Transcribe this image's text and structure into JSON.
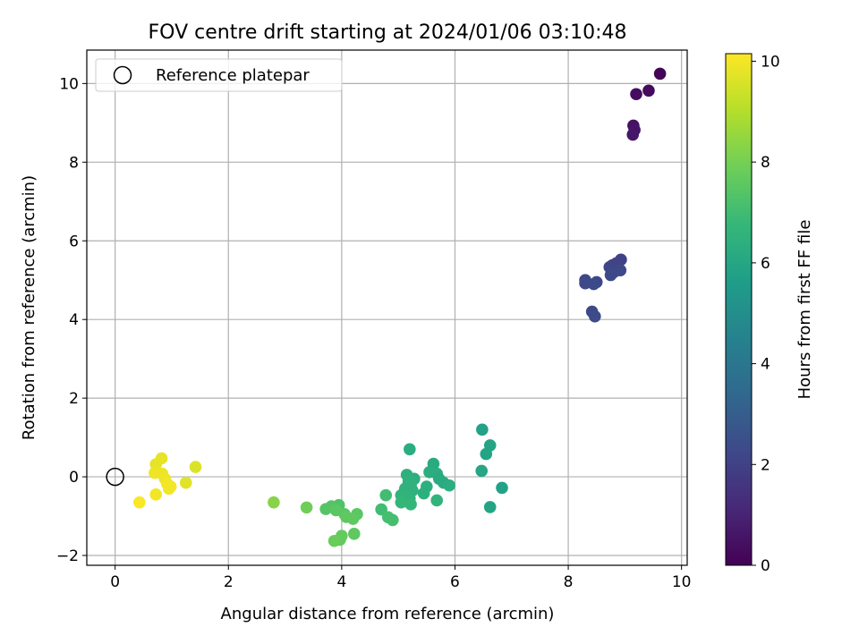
{
  "chart_data": {
    "type": "scatter",
    "title": "FOV centre drift starting at 2024/01/06 03:10:48",
    "xlabel": "Angular distance from reference (arcmin)",
    "ylabel": "Rotation from reference (arcmin)",
    "xlim": [
      -0.5,
      10.1
    ],
    "ylim": [
      -2.25,
      10.85
    ],
    "xticks": [
      0,
      2,
      4,
      6,
      8,
      10
    ],
    "yticks": [
      -2,
      0,
      2,
      4,
      6,
      8,
      10
    ],
    "grid": true,
    "legend": {
      "position": "top-left",
      "entries": [
        "Reference platepar"
      ]
    },
    "reference_point": {
      "x": 0,
      "y": 0
    },
    "colorbar": {
      "label": "Hours from first FF file",
      "range": [
        0,
        10.15
      ],
      "ticks": [
        0,
        2,
        4,
        6,
        8,
        10
      ],
      "colormap": "viridis"
    },
    "colormap_stops": [
      "#440154",
      "#482878",
      "#3e4989",
      "#31688e",
      "#26828e",
      "#1f9e89",
      "#35b779",
      "#6ece58",
      "#b5de2b",
      "#fde725"
    ],
    "points": [
      {
        "x": 9.62,
        "y": 10.25,
        "c": 0.1
      },
      {
        "x": 9.42,
        "y": 9.82,
        "c": 0.25
      },
      {
        "x": 9.2,
        "y": 9.73,
        "c": 0.35
      },
      {
        "x": 9.15,
        "y": 8.93,
        "c": 0.45
      },
      {
        "x": 9.17,
        "y": 8.82,
        "c": 0.55
      },
      {
        "x": 9.14,
        "y": 8.7,
        "c": 0.65
      },
      {
        "x": 8.93,
        "y": 5.52,
        "c": 2.0
      },
      {
        "x": 8.85,
        "y": 5.43,
        "c": 2.05
      },
      {
        "x": 8.78,
        "y": 5.38,
        "c": 2.1
      },
      {
        "x": 8.73,
        "y": 5.33,
        "c": 2.15
      },
      {
        "x": 8.8,
        "y": 5.2,
        "c": 2.2
      },
      {
        "x": 8.92,
        "y": 5.25,
        "c": 2.25
      },
      {
        "x": 8.75,
        "y": 5.13,
        "c": 2.3
      },
      {
        "x": 8.3,
        "y": 5.0,
        "c": 2.2
      },
      {
        "x": 8.3,
        "y": 4.92,
        "c": 2.25
      },
      {
        "x": 8.5,
        "y": 4.95,
        "c": 2.2
      },
      {
        "x": 8.45,
        "y": 4.9,
        "c": 2.3
      },
      {
        "x": 8.42,
        "y": 4.2,
        "c": 2.3
      },
      {
        "x": 8.47,
        "y": 4.08,
        "c": 2.35
      },
      {
        "x": 6.48,
        "y": 1.2,
        "c": 5.8
      },
      {
        "x": 6.62,
        "y": 0.8,
        "c": 5.9
      },
      {
        "x": 6.55,
        "y": 0.58,
        "c": 5.9
      },
      {
        "x": 6.47,
        "y": 0.15,
        "c": 6.0
      },
      {
        "x": 6.83,
        "y": -0.28,
        "c": 5.8
      },
      {
        "x": 6.62,
        "y": -0.77,
        "c": 5.9
      },
      {
        "x": 5.2,
        "y": 0.7,
        "c": 6.3
      },
      {
        "x": 5.62,
        "y": 0.33,
        "c": 6.2
      },
      {
        "x": 5.55,
        "y": 0.12,
        "c": 6.3
      },
      {
        "x": 5.68,
        "y": 0.08,
        "c": 6.3
      },
      {
        "x": 5.72,
        "y": -0.05,
        "c": 6.2
      },
      {
        "x": 5.8,
        "y": -0.15,
        "c": 6.2
      },
      {
        "x": 5.9,
        "y": -0.22,
        "c": 6.3
      },
      {
        "x": 5.15,
        "y": 0.05,
        "c": 6.4
      },
      {
        "x": 5.28,
        "y": -0.05,
        "c": 6.4
      },
      {
        "x": 5.18,
        "y": -0.12,
        "c": 6.5
      },
      {
        "x": 5.22,
        "y": -0.2,
        "c": 6.5
      },
      {
        "x": 5.5,
        "y": -0.25,
        "c": 6.4
      },
      {
        "x": 5.12,
        "y": -0.3,
        "c": 6.5
      },
      {
        "x": 5.25,
        "y": -0.35,
        "c": 6.5
      },
      {
        "x": 5.45,
        "y": -0.42,
        "c": 6.4
      },
      {
        "x": 5.05,
        "y": -0.47,
        "c": 6.6
      },
      {
        "x": 5.2,
        "y": -0.55,
        "c": 6.6
      },
      {
        "x": 5.1,
        "y": -0.62,
        "c": 6.6
      },
      {
        "x": 5.05,
        "y": -0.65,
        "c": 6.7
      },
      {
        "x": 5.22,
        "y": -0.7,
        "c": 6.7
      },
      {
        "x": 5.68,
        "y": -0.6,
        "c": 6.6
      },
      {
        "x": 4.78,
        "y": -0.47,
        "c": 7.0
      },
      {
        "x": 4.7,
        "y": -0.83,
        "c": 7.0
      },
      {
        "x": 4.82,
        "y": -1.03,
        "c": 7.1
      },
      {
        "x": 4.9,
        "y": -1.1,
        "c": 7.1
      },
      {
        "x": 3.95,
        "y": -0.72,
        "c": 7.3
      },
      {
        "x": 3.82,
        "y": -0.75,
        "c": 7.4
      },
      {
        "x": 3.72,
        "y": -0.82,
        "c": 7.4
      },
      {
        "x": 3.9,
        "y": -0.85,
        "c": 7.5
      },
      {
        "x": 4.05,
        "y": -0.95,
        "c": 7.5
      },
      {
        "x": 4.27,
        "y": -0.95,
        "c": 7.5
      },
      {
        "x": 4.08,
        "y": -1.02,
        "c": 7.6
      },
      {
        "x": 4.2,
        "y": -1.07,
        "c": 7.6
      },
      {
        "x": 4.22,
        "y": -1.45,
        "c": 7.6
      },
      {
        "x": 4.0,
        "y": -1.5,
        "c": 7.7
      },
      {
        "x": 3.97,
        "y": -1.6,
        "c": 7.7
      },
      {
        "x": 3.87,
        "y": -1.63,
        "c": 7.8
      },
      {
        "x": 3.38,
        "y": -0.78,
        "c": 7.9
      },
      {
        "x": 2.8,
        "y": -0.65,
        "c": 8.3
      },
      {
        "x": 1.42,
        "y": 0.25,
        "c": 9.6
      },
      {
        "x": 1.25,
        "y": -0.15,
        "c": 9.7
      },
      {
        "x": 0.82,
        "y": 0.47,
        "c": 9.8
      },
      {
        "x": 0.72,
        "y": 0.32,
        "c": 9.8
      },
      {
        "x": 0.7,
        "y": 0.1,
        "c": 9.9
      },
      {
        "x": 0.83,
        "y": 0.08,
        "c": 9.9
      },
      {
        "x": 0.88,
        "y": -0.05,
        "c": 9.9
      },
      {
        "x": 0.92,
        "y": -0.18,
        "c": 10.0
      },
      {
        "x": 0.98,
        "y": -0.25,
        "c": 10.0
      },
      {
        "x": 0.95,
        "y": -0.3,
        "c": 10.0
      },
      {
        "x": 0.72,
        "y": -0.45,
        "c": 10.0
      },
      {
        "x": 0.43,
        "y": -0.65,
        "c": 10.1
      }
    ]
  }
}
